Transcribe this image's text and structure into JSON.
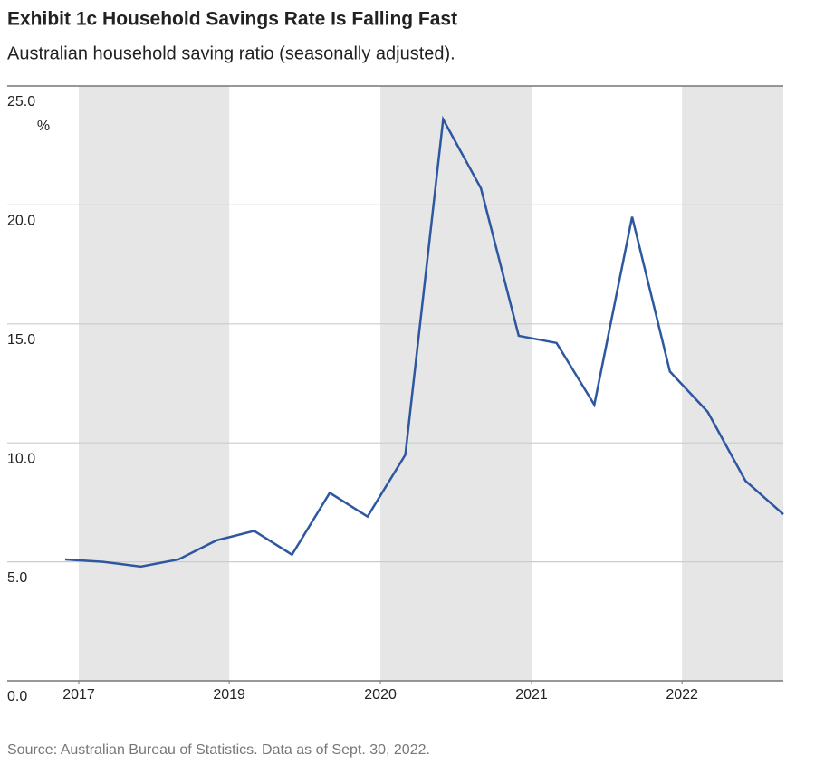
{
  "chart_data": {
    "type": "line",
    "title": "Exhibit 1c Household Savings Rate Is Falling Fast",
    "subtitle": "Australian household saving ratio (seasonally adjusted).",
    "y_unit": "%",
    "source": "Source: Australian Bureau of Statistics. Data as of Sept. 30, 2022.",
    "x": [
      0,
      1,
      2,
      3,
      4,
      5,
      6,
      7,
      8,
      9,
      10,
      11,
      12,
      13,
      14,
      15,
      16,
      17,
      18,
      19
    ],
    "xlim": [
      0,
      19
    ],
    "xticks": [
      {
        "value": 0.36,
        "label": "2017"
      },
      {
        "value": 4.34,
        "label": "2019"
      },
      {
        "value": 8.34,
        "label": "2020"
      },
      {
        "value": 12.34,
        "label": "2021"
      },
      {
        "value": 16.32,
        "label": "2022"
      }
    ],
    "series": [
      {
        "name": "Household saving ratio",
        "color": "#2d57a0",
        "values": [
          5.1,
          5.0,
          4.8,
          5.1,
          5.9,
          6.3,
          5.3,
          7.9,
          6.9,
          9.5,
          23.6,
          20.7,
          14.5,
          14.2,
          11.6,
          19.5,
          13.0,
          11.3,
          8.4,
          7.0
        ]
      }
    ],
    "ylim": [
      0,
      25
    ],
    "yticks": [
      {
        "value": 0,
        "label": "0.0"
      },
      {
        "value": 5,
        "label": "5.0"
      },
      {
        "value": 10,
        "label": "10.0"
      },
      {
        "value": 15,
        "label": "15.0"
      },
      {
        "value": 20,
        "label": "20.0"
      },
      {
        "value": 25,
        "label": "25.0"
      }
    ],
    "grid": true,
    "band_color": "#e6e6e6"
  }
}
